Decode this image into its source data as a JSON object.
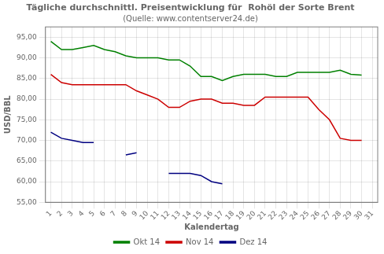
{
  "chart_data": {
    "type": "line",
    "title": "Tägliche durchschnittl. Preisentwicklung für  Rohöl der Sorte Brent",
    "subtitle": "(Quelle: www.contentserver24.de)",
    "x_label": "Kalendertag",
    "y_label": "USD/BBL",
    "x": [
      1,
      2,
      3,
      4,
      5,
      6,
      7,
      8,
      9,
      10,
      11,
      12,
      13,
      14,
      15,
      16,
      17,
      18,
      19,
      20,
      21,
      22,
      23,
      24,
      25,
      26,
      27,
      28,
      29,
      30,
      31
    ],
    "series": [
      {
        "name": "Okt 14",
        "color": "#008000",
        "values": [
          94.0,
          92.0,
          92.0,
          92.5,
          93.0,
          92.0,
          91.5,
          90.5,
          90.0,
          90.0,
          90.0,
          89.5,
          89.5,
          88.0,
          85.5,
          85.5,
          84.5,
          85.5,
          86.0,
          86.0,
          86.0,
          85.5,
          85.5,
          86.5,
          86.5,
          86.5,
          86.5,
          87.0,
          86.0,
          85.8,
          null
        ]
      },
      {
        "name": "Nov 14",
        "color": "#CC0000",
        "values": [
          86.0,
          84.0,
          83.5,
          83.5,
          83.5,
          83.5,
          83.5,
          83.5,
          82.0,
          81.0,
          80.0,
          78.0,
          78.0,
          79.5,
          80.0,
          80.0,
          79.0,
          79.0,
          78.5,
          78.5,
          80.5,
          80.5,
          80.5,
          80.5,
          80.5,
          77.5,
          75.0,
          70.5,
          70.0,
          70.0,
          null
        ]
      },
      {
        "name": "Dez 14",
        "color": "#000080",
        "values": [
          72.0,
          70.5,
          70.0,
          69.5,
          69.5,
          null,
          null,
          66.5,
          67.0,
          null,
          null,
          62.0,
          62.0,
          62.0,
          61.5,
          60.0,
          59.5,
          null,
          null,
          null,
          null,
          null,
          null,
          null,
          null,
          null,
          null,
          null,
          null,
          null,
          null
        ]
      }
    ],
    "xlim": [
      0.5,
      31.5
    ],
    "xticks": [
      1,
      2,
      3,
      4,
      5,
      6,
      7,
      8,
      9,
      10,
      11,
      12,
      13,
      14,
      15,
      16,
      17,
      18,
      19,
      20,
      21,
      22,
      23,
      24,
      25,
      26,
      27,
      28,
      29,
      30,
      31
    ],
    "ylim": [
      55.0,
      97.5
    ],
    "yticks": [
      {
        "value": 55.0,
        "label": "55,00"
      },
      {
        "value": 60.0,
        "label": "60,00"
      },
      {
        "value": 65.0,
        "label": "65,00"
      },
      {
        "value": 70.0,
        "label": "70,00"
      },
      {
        "value": 75.0,
        "label": "75,00"
      },
      {
        "value": 80.0,
        "label": "80,00"
      },
      {
        "value": 85.0,
        "label": "85,00"
      },
      {
        "value": 90.0,
        "label": "90,00"
      },
      {
        "value": 95.0,
        "label": "95,00"
      }
    ],
    "grid": true,
    "legend": "bottom"
  }
}
